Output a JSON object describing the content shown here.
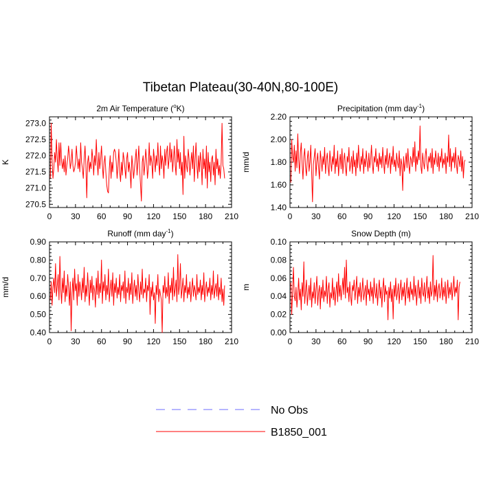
{
  "figure": {
    "title": "Tibetan Plateau(30-40N,80-100E)"
  },
  "legend": {
    "entries": [
      {
        "label": "No Obs",
        "color": "#6b6bff",
        "style": "dashed"
      },
      {
        "label": "B1850_001",
        "color": "#ff0000",
        "style": "solid"
      }
    ]
  },
  "chart_data": [
    {
      "type": "line",
      "title": "2m Air Temperature (",
      "title_sup": "o",
      "title_tail": "K)",
      "ylabel": "K",
      "xlim": [
        0,
        210
      ],
      "ylim": [
        270.4,
        273.2
      ],
      "xticks": [
        0,
        30,
        60,
        90,
        120,
        150,
        180,
        210
      ],
      "xtick_labels": [
        "0",
        "30",
        "60",
        "90",
        "120",
        "150",
        "180",
        "210"
      ],
      "yticks": [
        270.5,
        271.0,
        271.5,
        272.0,
        272.5,
        273.0
      ],
      "ytick_labels": [
        "270.5",
        "271.0",
        "271.5",
        "272.0",
        "272.5",
        "273.0"
      ],
      "grid": false,
      "series": [
        {
          "name": "B1850_001",
          "color": "#ff0000",
          "x_start": 1,
          "x_step": 1,
          "values": [
            271.3,
            273.0,
            271.9,
            271.3,
            271.6,
            272.1,
            271.8,
            272.5,
            271.9,
            271.5,
            272.4,
            271.7,
            272.4,
            271.8,
            271.6,
            271.9,
            271.5,
            272.0,
            271.4,
            271.7,
            271.9,
            272.3,
            272.0,
            271.6,
            271.8,
            272.2,
            271.7,
            271.5,
            271.6,
            271.8,
            272.3,
            271.9,
            271.6,
            271.9,
            271.5,
            272.4,
            271.8,
            271.6,
            271.3,
            271.9,
            272.3,
            271.7,
            270.7,
            271.8,
            272.0,
            271.5,
            271.8,
            271.6,
            272.2,
            271.9,
            271.4,
            272.0,
            271.7,
            272.5,
            271.8,
            271.4,
            272.1,
            271.6,
            271.9,
            272.3,
            271.7,
            271.3,
            271.8,
            272.0,
            271.5,
            271.1,
            270.9,
            270.85,
            271.6,
            272.0,
            271.3,
            271.8,
            271.5,
            272.1,
            272.2,
            272.1,
            271.8,
            271.3,
            271.7,
            272.2,
            271.5,
            271.2,
            271.8,
            271.4,
            272.1,
            271.9,
            271.6,
            271.3,
            271.9,
            272.1,
            271.5,
            271.8,
            271.5,
            271.0,
            272.0,
            271.7,
            271.3,
            271.6,
            271.9,
            272.2,
            271.4,
            271.8,
            272.3,
            271.6,
            271.1,
            270.6,
            271.8,
            272.0,
            271.4,
            271.7,
            272.2,
            271.9,
            271.3,
            271.6,
            272.4,
            271.7,
            272.0,
            271.8,
            271.3,
            272.2,
            271.9,
            271.5,
            272.0,
            271.7,
            272.4,
            271.8,
            271.4,
            272.3,
            271.6,
            272.0,
            271.8,
            271.3,
            272.2,
            271.7,
            272.1,
            272.3,
            271.6,
            271.9,
            272.4,
            271.8,
            272.2,
            271.5,
            271.9,
            272.3,
            271.7,
            271.4,
            272.5,
            271.8,
            272.2,
            271.6,
            272.1,
            271.4,
            271.8,
            270.8,
            272.6,
            271.3,
            272.0,
            271.7,
            271.5,
            272.2,
            271.9,
            271.4,
            271.8,
            272.1,
            271.6,
            272.3,
            271.2,
            271.9,
            272.4,
            271.7,
            271.3,
            272.0,
            271.5,
            272.1,
            271.8,
            271.1,
            272.2,
            271.6,
            271.9,
            271.3,
            272.3,
            271.0,
            272.1,
            271.5,
            271.8,
            271.2,
            271.9,
            272.0,
            271.4,
            271.8,
            271.1,
            272.2,
            271.6,
            271.9,
            271.4,
            271.7,
            271.3,
            271.8,
            273.0,
            271.7,
            271.6,
            271.3
          ]
        }
      ]
    },
    {
      "type": "line",
      "title": "Precipitation (mm day",
      "title_sup": "-1",
      "title_tail": ")",
      "ylabel": "mm/d",
      "xlim": [
        0,
        210
      ],
      "ylim": [
        1.4,
        2.2
      ],
      "xticks": [
        0,
        30,
        60,
        90,
        120,
        150,
        180,
        210
      ],
      "xtick_labels": [
        "0",
        "30",
        "60",
        "90",
        "120",
        "150",
        "180",
        "210"
      ],
      "yticks": [
        1.4,
        1.6,
        1.8,
        2.0,
        2.2
      ],
      "ytick_labels": [
        "1.40",
        "1.60",
        "1.80",
        "2.00",
        "2.20"
      ],
      "grid": false,
      "series": [
        {
          "name": "B1850_001",
          "color": "#ff0000",
          "x_start": 1,
          "x_step": 1,
          "values": [
            1.62,
            2.0,
            1.85,
            1.8,
            1.95,
            1.72,
            1.9,
            1.75,
            2.05,
            1.82,
            1.7,
            1.88,
            1.97,
            1.78,
            1.65,
            1.85,
            1.92,
            1.75,
            1.68,
            1.83,
            1.9,
            1.72,
            1.8,
            1.95,
            1.7,
            1.45,
            1.78,
            1.85,
            1.92,
            1.68,
            1.8,
            1.88,
            1.75,
            1.65,
            1.9,
            1.82,
            1.72,
            1.85,
            1.78,
            1.93,
            1.7,
            1.82,
            1.88,
            1.75,
            1.68,
            1.9,
            1.8,
            1.72,
            1.85,
            1.78,
            1.95,
            1.7,
            1.83,
            1.76,
            1.9,
            1.68,
            1.8,
            1.87,
            1.74,
            1.92,
            1.7,
            1.82,
            1.88,
            1.75,
            1.68,
            1.85,
            1.8,
            1.93,
            1.72,
            1.78,
            1.85,
            1.7,
            1.9,
            1.76,
            1.82,
            1.68,
            1.88,
            1.75,
            1.95,
            1.8,
            1.72,
            1.85,
            1.78,
            1.92,
            1.7,
            1.83,
            1.76,
            1.9,
            1.8,
            1.72,
            1.88,
            1.75,
            1.82,
            1.95,
            1.78,
            1.7,
            1.85,
            1.8,
            1.92,
            1.76,
            1.83,
            1.72,
            1.88,
            1.78,
            1.85,
            1.75,
            1.93,
            1.8,
            1.7,
            1.86,
            1.78,
            1.92,
            1.75,
            1.82,
            1.88,
            1.7,
            1.85,
            1.78,
            1.94,
            1.76,
            1.82,
            1.72,
            1.88,
            1.8,
            1.75,
            1.9,
            1.68,
            1.83,
            1.78,
            1.55,
            1.85,
            1.72,
            1.8,
            1.88,
            1.75,
            1.92,
            1.78,
            1.7,
            1.85,
            1.82,
            1.76,
            1.93,
            1.8,
            1.98,
            1.72,
            1.85,
            1.78,
            1.9,
            1.82,
            2.12,
            1.76,
            1.7,
            1.88,
            1.8,
            1.74,
            1.86,
            1.92,
            1.78,
            1.72,
            1.85,
            1.8,
            1.88,
            1.75,
            1.92,
            1.7,
            1.84,
            1.78,
            1.9,
            1.82,
            1.76,
            1.88,
            1.72,
            1.85,
            1.8,
            1.92,
            1.75,
            1.83,
            1.78,
            1.88,
            1.7,
            1.85,
            1.8,
            2.04,
            1.76,
            1.92,
            1.72,
            1.85,
            1.8,
            1.88,
            1.75,
            1.93,
            1.78,
            1.7,
            1.86,
            1.82,
            1.76,
            1.9,
            1.72,
            1.85,
            1.66,
            1.8,
            1.82
          ]
        }
      ]
    },
    {
      "type": "line",
      "title": "Runoff (mm day",
      "title_sup": "-1",
      "title_tail": ")",
      "ylabel": "mm/d",
      "xlim": [
        0,
        210
      ],
      "ylim": [
        0.4,
        0.9
      ],
      "xticks": [
        0,
        30,
        60,
        90,
        120,
        150,
        180,
        210
      ],
      "xtick_labels": [
        "0",
        "30",
        "60",
        "90",
        "120",
        "150",
        "180",
        "210"
      ],
      "yticks": [
        0.4,
        0.5,
        0.6,
        0.7,
        0.8,
        0.9
      ],
      "ytick_labels": [
        "0.40",
        "0.50",
        "0.60",
        "0.70",
        "0.80",
        "0.90"
      ],
      "grid": false,
      "series": [
        {
          "name": "B1850_001",
          "color": "#ff0000",
          "x_start": 1,
          "x_step": 1,
          "values": [
            0.58,
            0.68,
            0.55,
            0.65,
            0.7,
            0.62,
            0.78,
            0.6,
            0.66,
            0.72,
            0.58,
            0.82,
            0.64,
            0.56,
            0.7,
            0.62,
            0.74,
            0.57,
            0.66,
            0.6,
            0.72,
            0.65,
            0.55,
            0.68,
            0.41,
            0.62,
            0.7,
            0.58,
            0.75,
            0.63,
            0.67,
            0.55,
            0.72,
            0.6,
            0.68,
            0.64,
            0.58,
            0.7,
            0.62,
            0.76,
            0.57,
            0.66,
            0.6,
            0.73,
            0.64,
            0.55,
            0.69,
            0.62,
            0.71,
            0.58,
            0.66,
            0.63,
            0.54,
            0.7,
            0.61,
            0.74,
            0.59,
            0.67,
            0.62,
            0.8,
            0.56,
            0.68,
            0.63,
            0.72,
            0.58,
            0.66,
            0.61,
            0.75,
            0.57,
            0.64,
            0.69,
            0.6,
            0.73,
            0.55,
            0.67,
            0.62,
            0.7,
            0.59,
            0.65,
            0.61,
            0.72,
            0.57,
            0.66,
            0.63,
            0.68,
            0.59,
            0.74,
            0.56,
            0.65,
            0.62,
            0.7,
            0.58,
            0.67,
            0.61,
            0.73,
            0.56,
            0.64,
            0.69,
            0.6,
            0.66,
            0.58,
            0.72,
            0.63,
            0.57,
            0.68,
            0.61,
            0.75,
            0.59,
            0.64,
            0.62,
            0.7,
            0.57,
            0.66,
            0.63,
            0.72,
            0.5,
            0.65,
            0.6,
            0.68,
            0.58,
            0.62,
            0.45,
            0.66,
            0.61,
            0.72,
            0.57,
            0.64,
            0.61,
            0.58,
            0.4,
            0.66,
            0.62,
            0.71,
            0.59,
            0.65,
            0.6,
            0.73,
            0.56,
            0.66,
            0.62,
            0.7,
            0.58,
            0.76,
            0.6,
            0.64,
            0.69,
            0.57,
            0.83,
            0.61,
            0.66,
            0.78,
            0.59,
            0.64,
            0.7,
            0.57,
            0.66,
            0.62,
            0.72,
            0.59,
            0.65,
            0.61,
            0.68,
            0.57,
            0.64,
            0.7,
            0.6,
            0.66,
            0.63,
            0.58,
            0.72,
            0.61,
            0.65,
            0.62,
            0.69,
            0.58,
            0.66,
            0.61,
            0.73,
            0.57,
            0.64,
            0.68,
            0.6,
            0.65,
            0.62,
            0.7,
            0.58,
            0.66,
            0.61,
            0.74,
            0.59,
            0.64,
            0.67,
            0.6,
            0.72,
            0.58,
            0.65,
            0.61,
            0.7,
            0.57,
            0.64,
            0.55,
            0.66
          ]
        }
      ]
    },
    {
      "type": "line",
      "title": "Snow Depth (m)",
      "title_sup": "",
      "title_tail": "",
      "ylabel": "m",
      "xlim": [
        0,
        210
      ],
      "ylim": [
        0.0,
        0.1
      ],
      "xticks": [
        0,
        30,
        60,
        90,
        120,
        150,
        180,
        210
      ],
      "xtick_labels": [
        "0",
        "30",
        "60",
        "90",
        "120",
        "150",
        "180",
        "210"
      ],
      "yticks": [
        0.0,
        0.02,
        0.04,
        0.06,
        0.08,
        0.1
      ],
      "ytick_labels": [
        "0.00",
        "0.02",
        "0.04",
        "0.06",
        "0.08",
        "0.10"
      ],
      "grid": false,
      "series": [
        {
          "name": "B1850_001",
          "color": "#ff0000",
          "x_start": 1,
          "x_step": 1,
          "values": [
            0.055,
            0.02,
            0.045,
            0.072,
            0.04,
            0.035,
            0.05,
            0.028,
            0.042,
            0.06,
            0.036,
            0.048,
            0.025,
            0.055,
            0.04,
            0.078,
            0.032,
            0.046,
            0.058,
            0.03,
            0.042,
            0.052,
            0.036,
            0.06,
            0.028,
            0.045,
            0.038,
            0.055,
            0.032,
            0.048,
            0.062,
            0.03,
            0.044,
            0.052,
            0.026,
            0.05,
            0.038,
            0.058,
            0.034,
            0.046,
            0.04,
            0.062,
            0.032,
            0.048,
            0.055,
            0.028,
            0.044,
            0.038,
            0.06,
            0.036,
            0.05,
            0.03,
            0.046,
            0.056,
            0.034,
            0.065,
            0.04,
            0.052,
            0.036,
            0.048,
            0.06,
            0.042,
            0.072,
            0.038,
            0.08,
            0.044,
            0.05,
            0.034,
            0.056,
            0.04,
            0.03,
            0.052,
            0.046,
            0.058,
            0.036,
            0.048,
            0.062,
            0.032,
            0.05,
            0.04,
            0.055,
            0.034,
            0.046,
            0.06,
            0.036,
            0.044,
            0.052,
            0.03,
            0.058,
            0.042,
            0.048,
            0.035,
            0.056,
            0.04,
            0.05,
            0.032,
            0.06,
            0.044,
            0.038,
            0.054,
            0.03,
            0.046,
            0.058,
            0.038,
            0.05,
            0.028,
            0.048,
            0.06,
            0.034,
            0.052,
            0.042,
            0.046,
            0.014,
            0.05,
            0.038,
            0.056,
            0.034,
            0.048,
            0.015,
            0.052,
            0.04,
            0.06,
            0.036,
            0.044,
            0.054,
            0.032,
            0.048,
            0.058,
            0.036,
            0.05,
            0.04,
            0.055,
            0.03,
            0.046,
            0.06,
            0.038,
            0.05,
            0.034,
            0.056,
            0.042,
            0.048,
            0.036,
            0.062,
            0.04,
            0.052,
            0.03,
            0.046,
            0.058,
            0.038,
            0.05,
            0.032,
            0.06,
            0.044,
            0.04,
            0.055,
            0.034,
            0.048,
            0.062,
            0.038,
            0.05,
            0.032,
            0.056,
            0.04,
            0.046,
            0.085,
            0.036,
            0.052,
            0.04,
            0.058,
            0.034,
            0.048,
            0.054,
            0.038,
            0.044,
            0.06,
            0.036,
            0.05,
            0.04,
            0.056,
            0.032,
            0.046,
            0.058,
            0.038,
            0.05,
            0.042,
            0.055,
            0.036,
            0.048,
            0.062,
            0.04,
            0.05,
            0.044,
            0.058,
            0.014,
            0.05,
            0.056
          ]
        }
      ]
    }
  ]
}
